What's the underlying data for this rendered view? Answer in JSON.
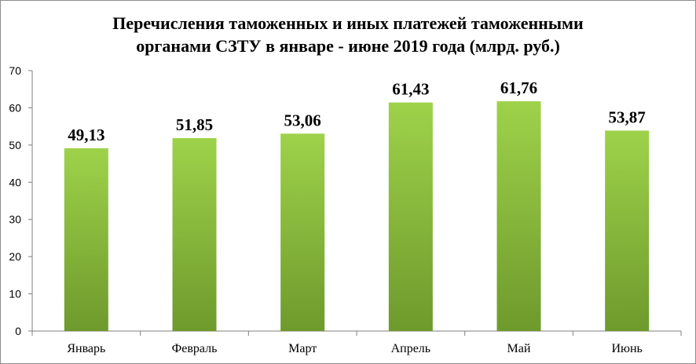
{
  "chart_data": {
    "type": "bar",
    "title_lines": [
      "Перечисления таможенных и иных платежей таможенными",
      "органами СЗТУ в январе - июне 2019 года (млрд. руб.)"
    ],
    "categories": [
      "Январь",
      "Февраль",
      "Март",
      "Апрель",
      "Май",
      "Июнь"
    ],
    "values": [
      49.13,
      51.85,
      53.06,
      61.43,
      61.76,
      53.87
    ],
    "data_labels": [
      "49,13",
      "51,85",
      "53,06",
      "61,43",
      "61,76",
      "53,87"
    ],
    "y_ticks": [
      "0",
      "10",
      "20",
      "30",
      "40",
      "50",
      "60",
      "70"
    ],
    "ylim": [
      0,
      70
    ],
    "xlabel": "",
    "ylabel": "",
    "grid": false,
    "legend": "none",
    "colors": {
      "bar_top": "#9ed24a",
      "bar_bottom": "#6e9a2c",
      "axis": "#7f7f7f"
    }
  }
}
